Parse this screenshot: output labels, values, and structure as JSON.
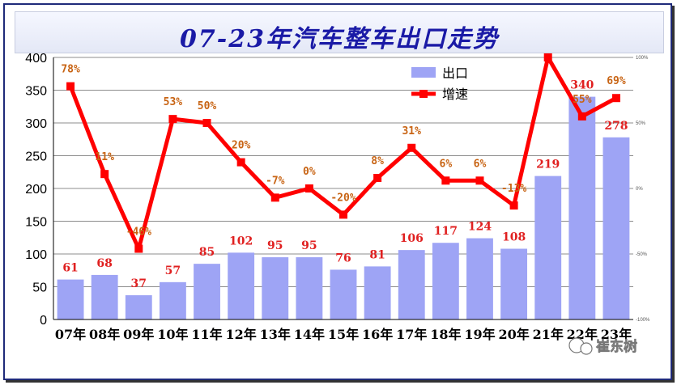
{
  "title": "07-23年汽车整车出口走势",
  "watermark": "崔东树",
  "colors": {
    "bar": "#9ea4f5",
    "line": "#ff0000",
    "bar_label": "#e02020",
    "pct_label": "#c86414",
    "title": "#1a1aa6"
  },
  "chart_data": {
    "type": "bar",
    "categories": [
      "07年",
      "08年",
      "09年",
      "10年",
      "11年",
      "12年",
      "13年",
      "14年",
      "15年",
      "16年",
      "17年",
      "18年",
      "19年",
      "20年",
      "21年",
      "22年",
      "23年"
    ],
    "series": [
      {
        "name": "出口",
        "type": "bar",
        "axis": "left",
        "values": [
          61,
          68,
          37,
          57,
          85,
          102,
          95,
          95,
          76,
          81,
          106,
          117,
          124,
          108,
          219,
          340,
          278
        ]
      },
      {
        "name": "增速",
        "type": "line",
        "axis": "right",
        "unit": "%",
        "values": [
          78,
          11,
          -46,
          53,
          50,
          20,
          -7,
          0,
          -20,
          8,
          31,
          6,
          6,
          -13,
          102,
          55,
          69
        ],
        "labels": [
          "78%",
          "11%",
          "-46%",
          "53%",
          "50%",
          "20%",
          "-7%",
          "0%",
          "-20%",
          "8%",
          "31%",
          "6%",
          "6%",
          "-13%",
          "",
          "55%",
          "69%"
        ]
      }
    ],
    "y_left": {
      "lim": [
        0,
        400
      ],
      "ticks": [
        0,
        50,
        100,
        150,
        200,
        250,
        300,
        350,
        400
      ]
    },
    "y_right": {
      "lim": [
        -100,
        100
      ],
      "ticks": [
        "100%",
        "50%",
        "0%",
        "-50%",
        "-100%"
      ],
      "tick_values": [
        100,
        50,
        0,
        -50,
        -100
      ]
    },
    "grid": true,
    "legend_position": "top-right"
  }
}
